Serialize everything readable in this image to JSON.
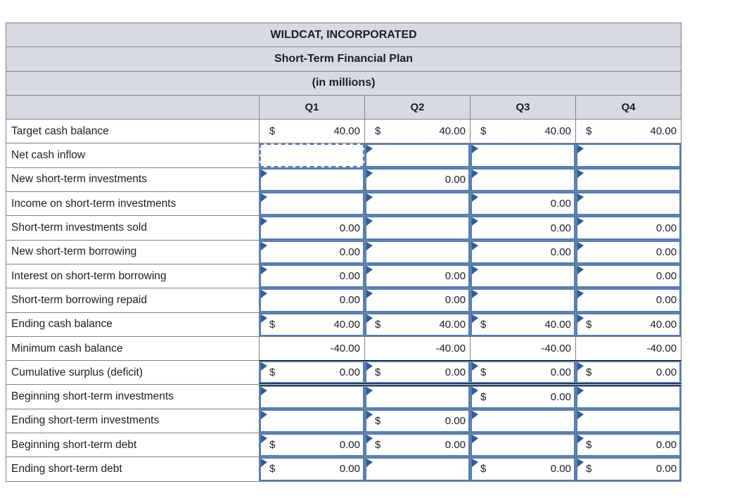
{
  "colors": {
    "accent": "#4d7ebf",
    "flag": "#2d5d97",
    "header-bg": "#d7dae3",
    "grid": "#818181",
    "text": "#1b1e24",
    "rule": "#000000"
  },
  "header": {
    "company": "WILDCAT, INCORPORATED",
    "title": "Short-Term Financial Plan",
    "subtitle": "(in millions)"
  },
  "columns": [
    "Q1",
    "Q2",
    "Q3",
    "Q4"
  ],
  "rows": [
    {
      "key": "target-cash-balance",
      "label": "Target cash balance",
      "cells": [
        {
          "t": "plain",
          "d": "$",
          "v": "40.00"
        },
        {
          "t": "plain",
          "d": "$",
          "v": "40.00"
        },
        {
          "t": "plain",
          "d": "$",
          "v": "40.00"
        },
        {
          "t": "plain",
          "d": "$",
          "v": "40.00"
        }
      ]
    },
    {
      "key": "net-cash-inflow",
      "label": "Net cash inflow",
      "cells": [
        {
          "t": "sel"
        },
        {
          "t": "input"
        },
        {
          "t": "input"
        },
        {
          "t": "input"
        }
      ]
    },
    {
      "key": "new-short-term-investments",
      "label": "New short-term investments",
      "cells": [
        {
          "t": "input"
        },
        {
          "t": "input",
          "v": "0.00"
        },
        {
          "t": "input"
        },
        {
          "t": "input"
        }
      ]
    },
    {
      "key": "income-on-short-term-investments",
      "label": "Income on short-term investments",
      "cells": [
        {
          "t": "input"
        },
        {
          "t": "input"
        },
        {
          "t": "input",
          "v": "0.00"
        },
        {
          "t": "input"
        }
      ]
    },
    {
      "key": "short-term-investments-sold",
      "label": "Short-term investments sold",
      "cells": [
        {
          "t": "input",
          "v": "0.00"
        },
        {
          "t": "input"
        },
        {
          "t": "input",
          "v": "0.00"
        },
        {
          "t": "input",
          "v": "0.00"
        }
      ]
    },
    {
      "key": "new-short-term-borrowing",
      "label": "New short-term borrowing",
      "cells": [
        {
          "t": "input",
          "v": "0.00"
        },
        {
          "t": "input"
        },
        {
          "t": "input",
          "v": "0.00"
        },
        {
          "t": "input",
          "v": "0.00"
        }
      ]
    },
    {
      "key": "interest-on-short-term-borrowing",
      "label": "Interest on short-term borrowing",
      "cells": [
        {
          "t": "input",
          "v": "0.00"
        },
        {
          "t": "input",
          "v": "0.00"
        },
        {
          "t": "input"
        },
        {
          "t": "input",
          "v": "0.00"
        }
      ]
    },
    {
      "key": "short-term-borrowing-repaid",
      "label": "Short-term borrowing repaid",
      "cells": [
        {
          "t": "input",
          "v": "0.00"
        },
        {
          "t": "input",
          "v": "0.00"
        },
        {
          "t": "input"
        },
        {
          "t": "input",
          "v": "0.00"
        }
      ]
    },
    {
      "key": "ending-cash-balance",
      "label": "Ending cash balance",
      "cells": [
        {
          "t": "input",
          "d": "$",
          "v": "40.00"
        },
        {
          "t": "input",
          "d": "$",
          "v": "40.00"
        },
        {
          "t": "input",
          "d": "$",
          "v": "40.00"
        },
        {
          "t": "input",
          "d": "$",
          "v": "40.00"
        }
      ]
    },
    {
      "key": "minimum-cash-balance",
      "label": "Minimum cash balance",
      "rule": "rule1",
      "cells": [
        {
          "t": "plain",
          "v": "-40.00"
        },
        {
          "t": "plain",
          "v": "-40.00"
        },
        {
          "t": "plain",
          "v": "-40.00"
        },
        {
          "t": "plain",
          "v": "-40.00"
        }
      ]
    },
    {
      "key": "cumulative-surplus-deficit",
      "label": "Cumulative surplus (deficit)",
      "rule": "rule2",
      "cells": [
        {
          "t": "input",
          "d": "$",
          "v": "0.00"
        },
        {
          "t": "input",
          "d": "$",
          "v": "0.00"
        },
        {
          "t": "input",
          "d": "$",
          "v": "0.00"
        },
        {
          "t": "input",
          "d": "$",
          "v": "0.00"
        }
      ]
    },
    {
      "key": "beginning-short-term-investments",
      "label": "Beginning short-term investments",
      "cells": [
        {
          "t": "input"
        },
        {
          "t": "input"
        },
        {
          "t": "input",
          "d": "$",
          "v": "0.00"
        },
        {
          "t": "input"
        }
      ]
    },
    {
      "key": "ending-short-term-investments",
      "label": "Ending short-term investments",
      "cells": [
        {
          "t": "input"
        },
        {
          "t": "input",
          "d": "$",
          "v": "0.00"
        },
        {
          "t": "input"
        },
        {
          "t": "input"
        }
      ]
    },
    {
      "key": "beginning-short-term-debt",
      "label": "Beginning short-term debt",
      "cells": [
        {
          "t": "input",
          "d": "$",
          "v": "0.00"
        },
        {
          "t": "input",
          "d": "$",
          "v": "0.00"
        },
        {
          "t": "input"
        },
        {
          "t": "input",
          "d": "$",
          "v": "0.00"
        }
      ]
    },
    {
      "key": "ending-short-term-debt",
      "label": "Ending short-term debt",
      "cells": [
        {
          "t": "input",
          "d": "$",
          "v": "0.00"
        },
        {
          "t": "input"
        },
        {
          "t": "input",
          "d": "$",
          "v": "0.00"
        },
        {
          "t": "input",
          "d": "$",
          "v": "0.00"
        }
      ]
    }
  ]
}
